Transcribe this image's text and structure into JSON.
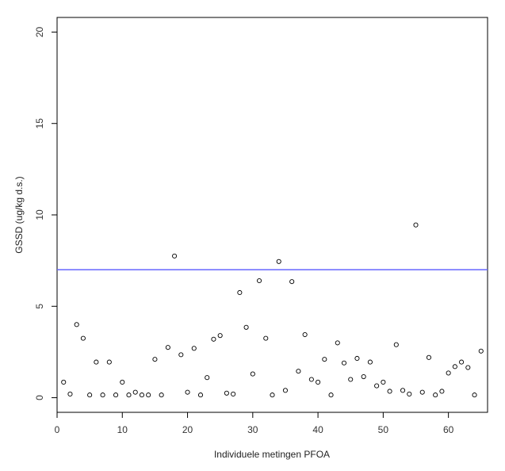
{
  "chart_data": {
    "type": "scatter",
    "title": "",
    "xlabel": "Individuele metingen PFOA",
    "ylabel": "GSSD (ug/kg d.s.)",
    "xlim": [
      0,
      66
    ],
    "ylim": [
      -0.8,
      20.8
    ],
    "x_ticks": [
      0,
      10,
      20,
      30,
      40,
      50,
      60
    ],
    "y_ticks": [
      0,
      5,
      10,
      15,
      20
    ],
    "grid": false,
    "reference_line": {
      "y": 7.0,
      "color": "#6666ff"
    },
    "point_style": {
      "shape": "open-circle",
      "color": "#000000"
    },
    "x": [
      1,
      2,
      3,
      4,
      5,
      6,
      7,
      8,
      9,
      10,
      11,
      12,
      13,
      14,
      15,
      16,
      17,
      18,
      19,
      20,
      21,
      22,
      23,
      24,
      25,
      26,
      27,
      28,
      29,
      30,
      31,
      32,
      33,
      34,
      35,
      36,
      37,
      38,
      39,
      40,
      41,
      42,
      43,
      44,
      45,
      46,
      47,
      48,
      49,
      50,
      51,
      52,
      53,
      54,
      55,
      56,
      57,
      58,
      59,
      60,
      61,
      62,
      63,
      64,
      65
    ],
    "y": [
      0.85,
      0.2,
      4.0,
      3.25,
      0.15,
      1.95,
      0.15,
      1.95,
      0.15,
      0.85,
      0.15,
      0.3,
      0.15,
      0.15,
      2.1,
      0.15,
      2.75,
      7.75,
      2.35,
      0.3,
      2.7,
      0.15,
      1.1,
      3.2,
      3.4,
      0.25,
      0.2,
      5.75,
      3.85,
      1.3,
      6.4,
      3.25,
      0.15,
      7.45,
      0.4,
      6.35,
      1.45,
      3.45,
      1.0,
      0.85,
      2.1,
      0.15,
      3.0,
      1.9,
      1.0,
      2.15,
      1.15,
      1.95,
      0.65,
      0.85,
      0.35,
      2.9,
      0.4,
      0.2,
      9.45,
      0.3,
      2.2,
      0.15,
      0.35,
      1.35,
      1.7,
      1.95,
      1.65,
      0.15,
      2.55
    ]
  }
}
